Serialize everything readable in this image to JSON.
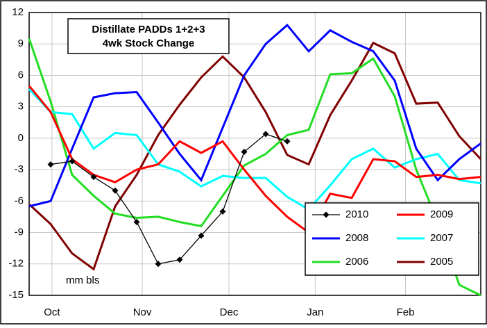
{
  "chart_data": {
    "type": "line",
    "title": "Distillate PADDs 1+2+3",
    "subtitle": "4wk Stock Change",
    "annotation": "mm bls",
    "x": [
      0,
      1,
      2,
      3,
      4,
      5,
      6,
      7,
      8,
      9,
      10,
      11,
      12,
      13,
      14,
      15,
      16,
      17,
      18,
      19,
      20,
      21
    ],
    "xlim": [
      0,
      21
    ],
    "xticks": [
      {
        "value": 1.06,
        "label": "Oct"
      },
      {
        "value": 5.26,
        "label": "Nov"
      },
      {
        "value": 9.29,
        "label": "Dec"
      },
      {
        "value": 13.3,
        "label": "Jan"
      },
      {
        "value": 17.5,
        "label": "Feb"
      }
    ],
    "ylim": [
      -15,
      12
    ],
    "yticks": [
      12,
      9,
      6,
      3,
      0,
      -3,
      -6,
      -9,
      -12,
      -15
    ],
    "grid": true,
    "legend_position": "lower right",
    "series": [
      {
        "name": "2010",
        "color": "#000000",
        "marker": "diamond",
        "values": [
          null,
          -2.5,
          -2.2,
          -3.7,
          -5,
          -8,
          -12,
          -11.6,
          -9.3,
          -7,
          -1.3,
          0.4,
          -0.3,
          null,
          null,
          null,
          null,
          null,
          null,
          null,
          null,
          null
        ]
      },
      {
        "name": "2009",
        "color": "#ff0000",
        "values": [
          5,
          2.5,
          -2,
          -3.5,
          -4.2,
          -3,
          -2.5,
          -0.3,
          -1.4,
          -0.3,
          -3,
          -5.5,
          -7.5,
          -9,
          -5.3,
          -5.7,
          -2,
          -2.2,
          -3.7,
          -3.5,
          -3.9,
          -3.7
        ]
      },
      {
        "name": "2008",
        "color": "#0000ff",
        "values": [
          -6.5,
          -6,
          -1,
          3.9,
          4.3,
          4.4,
          1.5,
          -1.5,
          -4,
          1,
          6,
          9,
          10.8,
          8.3,
          10.3,
          9.2,
          8.3,
          5.5,
          -1,
          -4,
          -2,
          -0.5
        ]
      },
      {
        "name": "2007",
        "color": "#00ffff",
        "values": [
          4.7,
          2.5,
          2.3,
          -1,
          0.5,
          0.3,
          -2.5,
          -3.2,
          -4.6,
          -3.6,
          -3.8,
          -3.8,
          -5.6,
          -6.8,
          -4.5,
          -2,
          -1,
          -2.8,
          -2,
          -1.5,
          -4,
          -4.3
        ]
      },
      {
        "name": "2006",
        "color": "#22dd22",
        "values": [
          9.5,
          3.5,
          -3.5,
          -5.5,
          -7.2,
          -7.6,
          -7.5,
          -8,
          -8.4,
          -5.5,
          -2.6,
          -1.5,
          0.3,
          0.8,
          6.1,
          6.2,
          7.6,
          4,
          -3,
          -8,
          -14,
          -15
        ]
      },
      {
        "name": "2005",
        "color": "#800000",
        "values": [
          -6.3,
          -8.2,
          -11,
          -12.5,
          -6.5,
          -3.5,
          0.3,
          3.2,
          5.8,
          7.8,
          5.8,
          2.5,
          -1.6,
          -2.5,
          2.2,
          5.5,
          9.1,
          8.1,
          3.3,
          3.4,
          0.2,
          -2
        ]
      }
    ]
  }
}
